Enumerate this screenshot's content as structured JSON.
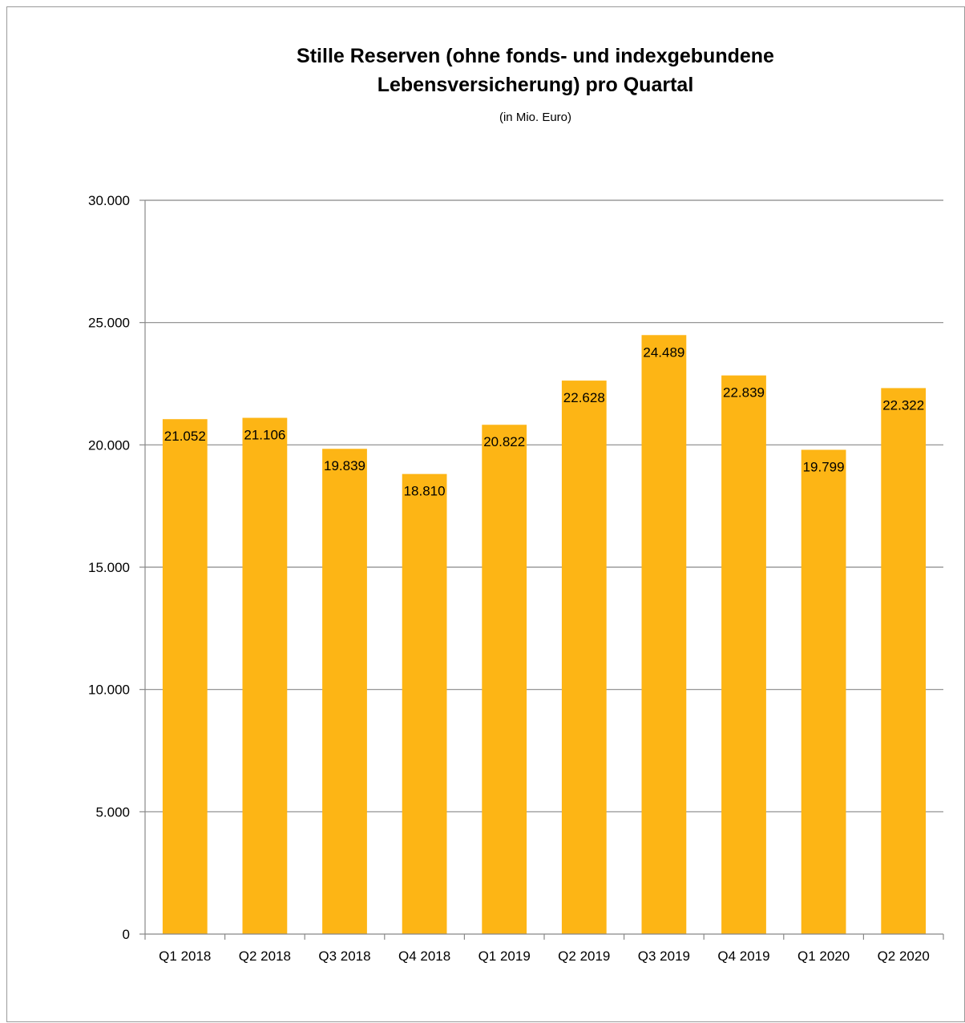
{
  "chart_data": {
    "type": "bar",
    "title": [
      "Stille Reserven (ohne fonds- und indexgebundene",
      "Lebensversicherung) pro Quartal"
    ],
    "subtitle": "(in Mio. Euro)",
    "categories": [
      "Q1 2018",
      "Q2 2018",
      "Q3 2018",
      "Q4 2018",
      "Q1 2019",
      "Q2 2019",
      "Q3 2019",
      "Q4 2019",
      "Q1 2020",
      "Q2 2020"
    ],
    "values": [
      21052,
      21106,
      19839,
      18810,
      20822,
      22628,
      24489,
      22839,
      19799,
      22322
    ],
    "data_labels": [
      "21.052",
      "21.106",
      "19.839",
      "18.810",
      "20.822",
      "22.628",
      "24.489",
      "22.839",
      "19.799",
      "22.322"
    ],
    "ylim": [
      0,
      30000
    ],
    "yticks": [
      0,
      5000,
      10000,
      15000,
      20000,
      25000,
      30000
    ],
    "ytick_labels": [
      "0",
      "5.000",
      "10.000",
      "15.000",
      "20.000",
      "25.000",
      "30.000"
    ],
    "grid": true,
    "legend": "none",
    "colors": {
      "bar": "#FDB515",
      "gridline": "#888888",
      "axis": "#888888",
      "frame": "#9a9a9a"
    }
  }
}
